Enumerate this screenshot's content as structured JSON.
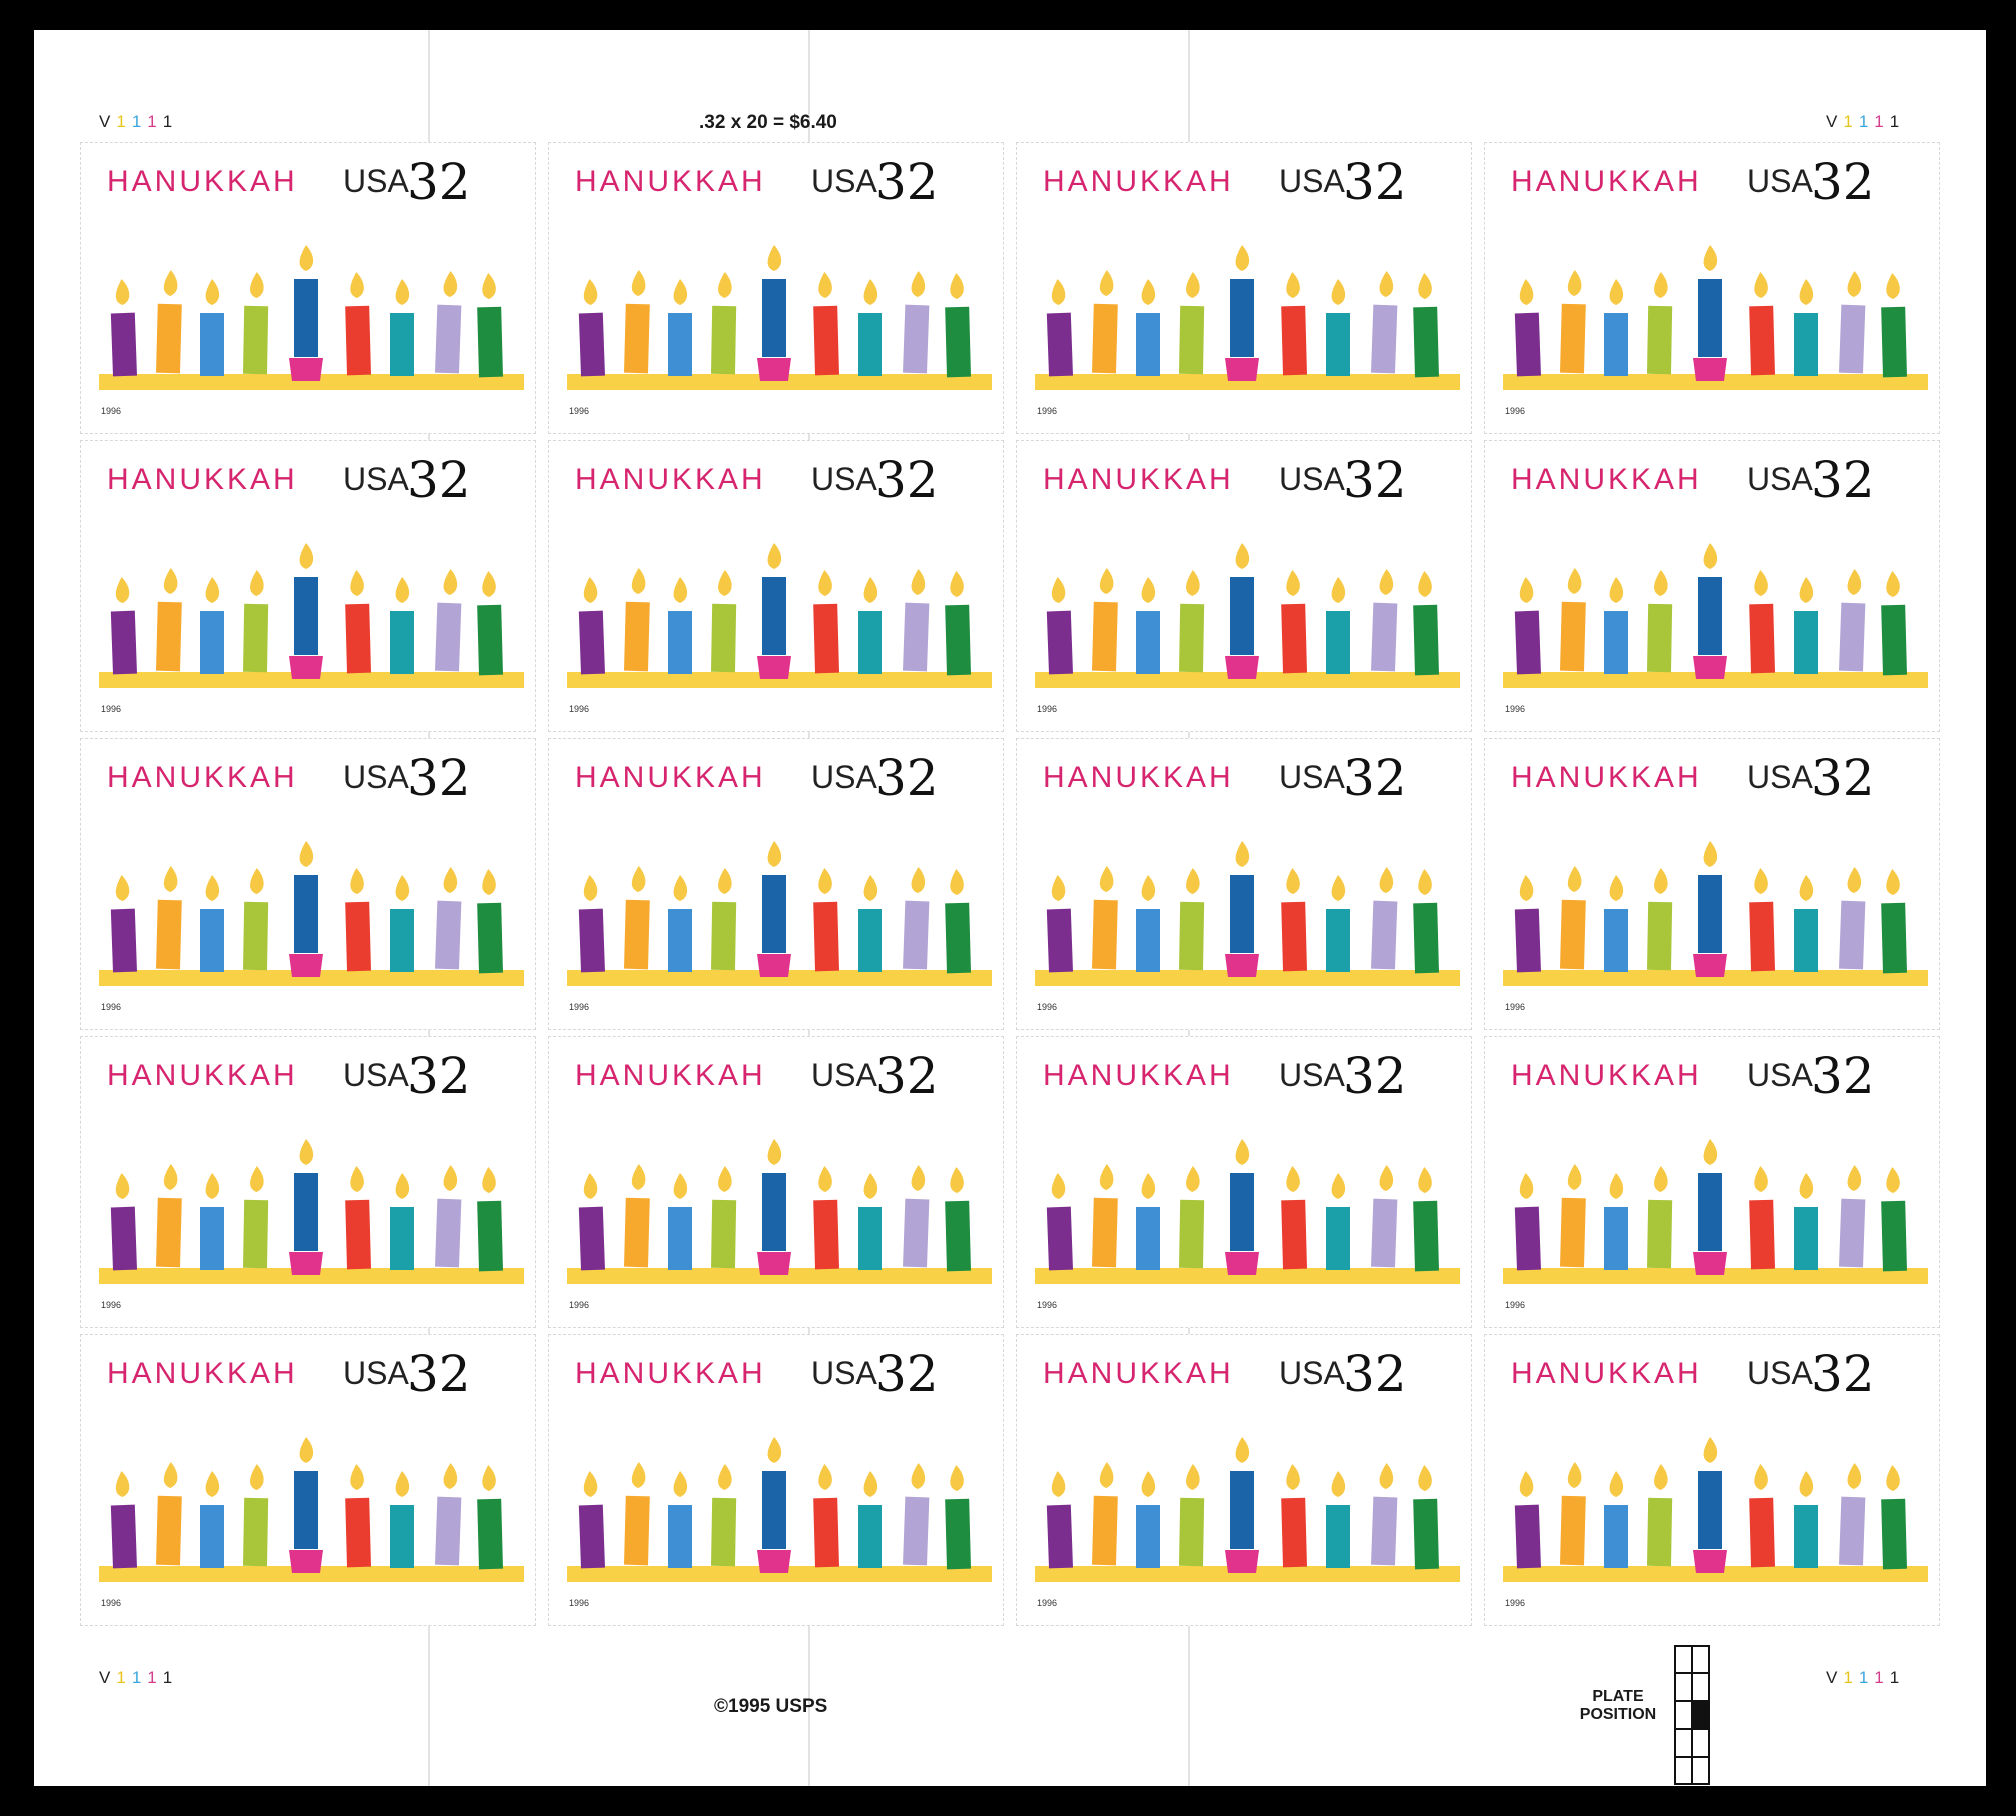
{
  "sheet": {
    "price_note": ".32 x 20 = $6.40",
    "copyright": "©1995 USPS",
    "plate_position_line1": "PLATE",
    "plate_position_line2": "POSITION",
    "plate_number": {
      "letter": "V",
      "digits": [
        "1",
        "1",
        "1",
        "1"
      ],
      "digit_colors": [
        "#e8c51c",
        "#3aa6dd",
        "#d63c8c",
        "#222222"
      ]
    }
  },
  "stamp": {
    "title": "HANUKKAH",
    "country": "USA",
    "denomination": "32",
    "year": "1996",
    "candle_colors": [
      "#7c2e8f",
      "#f6a92c",
      "#3e8fd4",
      "#a9c63b",
      "#1c64a8",
      "#ea3d2f",
      "#1b9fa8",
      "#b3a4d6",
      "#1f8d3f"
    ],
    "flame_color": "#f7c844",
    "base_color": "#f8d146",
    "holder_color": "#e2338c"
  },
  "layout": {
    "rows": 5,
    "columns": 4,
    "stamp_count": 20
  }
}
